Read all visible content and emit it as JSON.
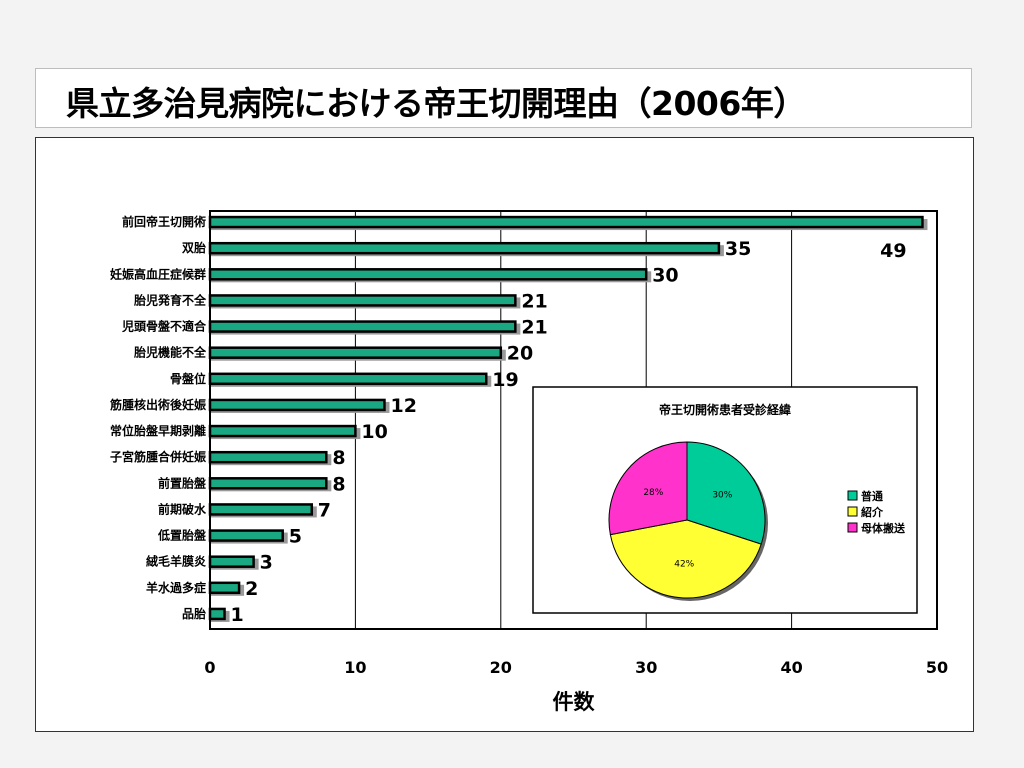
{
  "slide": {
    "title": "県立多治見病院における帝王切開理由（2006年）"
  },
  "chart_data": [
    {
      "type": "bar",
      "orientation": "horizontal",
      "categories": [
        "前回帝王切開術",
        "双胎",
        "妊娠高血圧症候群",
        "胎児発育不全",
        "児頭骨盤不適合",
        "胎児機能不全",
        "骨盤位",
        "筋腫核出術後妊娠",
        "常位胎盤早期剥離",
        "子宮筋腫合併妊娠",
        "前置胎盤",
        "前期破水",
        "低置胎盤",
        "絨毛羊膜炎",
        "羊水過多症",
        "品胎"
      ],
      "values": [
        49,
        35,
        30,
        21,
        21,
        20,
        19,
        12,
        10,
        8,
        8,
        7,
        5,
        3,
        2,
        1
      ],
      "data_labels": [
        "49",
        "35",
        "30",
        "21",
        "21",
        "20",
        "19",
        "12",
        "10",
        "8",
        "8",
        "7",
        "5",
        "3",
        "2",
        "1"
      ],
      "xlabel": "件数",
      "xlim": [
        0,
        50
      ],
      "xticks": [
        "0",
        "10",
        "20",
        "30",
        "40",
        "50"
      ],
      "grid": true,
      "bar_color": "#1aa882"
    },
    {
      "type": "pie",
      "title": "帝王切開術患者受診経緯",
      "labels": [
        "普通",
        "紹介",
        "母体搬送"
      ],
      "values": [
        30,
        42,
        28
      ],
      "value_labels": [
        "30%",
        "42%",
        "28%"
      ],
      "colors": [
        "#00cc99",
        "#ffff33",
        "#ff33cc"
      ],
      "legend": "right"
    }
  ]
}
